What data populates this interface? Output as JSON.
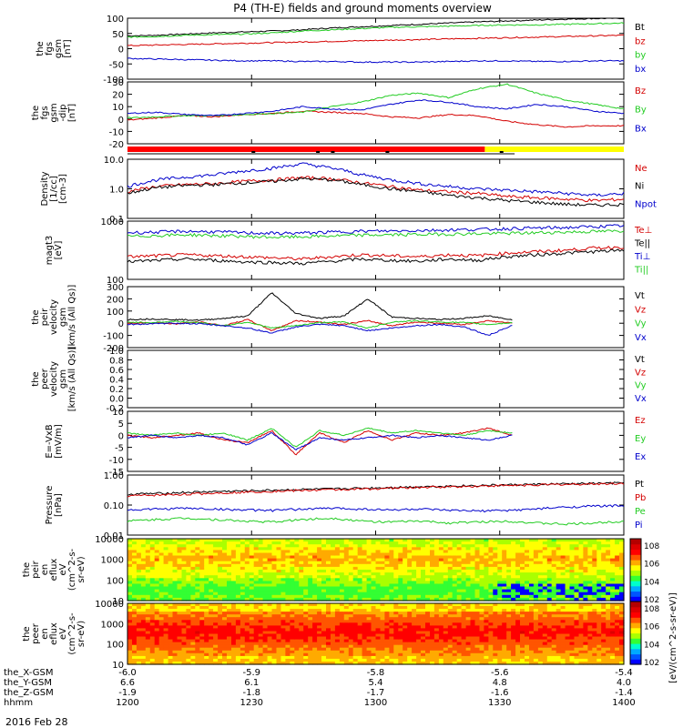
{
  "title": "P4 (TH-E) fields and ground moments overview",
  "footer_date": "2016 Feb 28",
  "colors": {
    "black": "#000000",
    "red": "#d40000",
    "green": "#22cc22",
    "blue": "#0000cc",
    "yellow": "#ffff00"
  },
  "chart_data": {
    "type": "line",
    "x_axis": {
      "rows": [
        {
          "label": "the_X-GSM",
          "ticks": [
            "-6.0",
            "-5.9",
            "-5.8",
            "-5.6",
            "-5.4"
          ]
        },
        {
          "label": "the_Y-GSM",
          "ticks": [
            "6.6",
            "6.1",
            "5.4",
            "4.8",
            "4.0"
          ]
        },
        {
          "label": "the_Z-GSM",
          "ticks": [
            "-1.9",
            "-1.8",
            "-1.7",
            "-1.6",
            "-1.4"
          ]
        },
        {
          "label": "hhmm",
          "ticks": [
            "1200",
            "1230",
            "1300",
            "1330",
            "1400"
          ]
        }
      ],
      "range_hhmm": [
        1200,
        1400
      ]
    },
    "panels": [
      {
        "id": "p1",
        "ylabel": [
          "the",
          "fgs",
          "gsm",
          "[nT]"
        ],
        "ylim": [
          -100,
          100
        ],
        "yticks": [
          "100",
          "50",
          "0",
          "-50",
          "-100"
        ],
        "series": [
          {
            "name": "Bt",
            "color": "black",
            "values": [
              42,
              44,
              48,
              52,
              55,
              58,
              62,
              68,
              72,
              76,
              80,
              84,
              88,
              91,
              94,
              97,
              99,
              100
            ]
          },
          {
            "name": "bz",
            "color": "red",
            "values": [
              10,
              12,
              14,
              16,
              18,
              20,
              22,
              24,
              26,
              28,
              30,
              32,
              34,
              36,
              38,
              40,
              42,
              44
            ]
          },
          {
            "name": "by",
            "color": "green",
            "values": [
              38,
              40,
              44,
              46,
              48,
              52,
              58,
              62,
              66,
              70,
              72,
              74,
              76,
              78,
              78,
              80,
              82,
              84
            ]
          },
          {
            "name": "bx",
            "color": "blue",
            "values": [
              -32,
              -34,
              -36,
              -38,
              -40,
              -40,
              -42,
              -42,
              -44,
              -44,
              -44,
              -42,
              -40,
              -40,
              -42,
              -42,
              -40,
              -40
            ]
          }
        ]
      },
      {
        "id": "p2",
        "ylabel": [
          "the",
          "fgs",
          "gsm",
          "-dip",
          "[nT]"
        ],
        "ylim": [
          -25,
          30
        ],
        "yticks": [
          "30",
          "20",
          "10",
          "0",
          "-10",
          "-20"
        ],
        "series": [
          {
            "name": "Bz",
            "color": "red",
            "values": [
              -4,
              -2,
              0,
              -1,
              1,
              2,
              4,
              3,
              2,
              -1,
              -2,
              1,
              0,
              -5,
              -8,
              -10,
              -9,
              -9
            ]
          },
          {
            "name": "By",
            "color": "green",
            "values": [
              -2,
              -1,
              0,
              0,
              1,
              2,
              3,
              8,
              12,
              18,
              20,
              16,
              24,
              28,
              20,
              14,
              10,
              6
            ]
          },
          {
            "name": "Bx",
            "color": "blue",
            "values": [
              2,
              3,
              1,
              0,
              2,
              4,
              8,
              6,
              5,
              10,
              14,
              12,
              8,
              6,
              10,
              8,
              4,
              2
            ]
          }
        ]
      },
      {
        "id": "p3",
        "ylabel": [
          "Density",
          "[1/cc]",
          "[cm-3]"
        ],
        "ylim": [
          0.1,
          10
        ],
        "yticks": [
          "10.0",
          "1.0",
          "0.1"
        ],
        "log": true,
        "series": [
          {
            "name": "Ne",
            "color": "red",
            "values": [
              0.8,
              1.2,
              1.4,
              1.5,
              1.8,
              2,
              2.4,
              2.2,
              1.6,
              1.2,
              0.9,
              0.8,
              0.7,
              0.55,
              0.5,
              0.45,
              0.4,
              0.45
            ]
          },
          {
            "name": "Ni",
            "color": "black",
            "values": [
              0.7,
              1.1,
              1.3,
              1.4,
              1.6,
              1.8,
              2.2,
              2,
              1.4,
              1,
              0.8,
              0.6,
              0.5,
              0.4,
              0.35,
              0.3,
              0.28,
              0.3
            ]
          },
          {
            "name": "Npot",
            "color": "blue",
            "values": [
              1.2,
              2,
              2.5,
              3,
              4,
              5,
              7,
              5,
              3,
              2,
              1.5,
              1.2,
              1,
              0.9,
              0.8,
              0.7,
              0.6,
              0.7
            ]
          }
        ]
      },
      {
        "id": "p4",
        "ylabel": [
          "magt3",
          "[eV]"
        ],
        "ylim": [
          100,
          10000
        ],
        "yticks": [
          "1000",
          "100"
        ],
        "log": true,
        "series": [
          {
            "name": "Te⊥",
            "color": "red",
            "values": [
              600,
              650,
              700,
              650,
              600,
              550,
              500,
              600,
              700,
              650,
              600,
              700,
              650,
              800,
              900,
              1000,
              1200,
              1300
            ]
          },
          {
            "name": "Te||",
            "color": "black",
            "values": [
              400,
              450,
              500,
              450,
              400,
              380,
              350,
              420,
              500,
              450,
              420,
              500,
              450,
              600,
              700,
              800,
              900,
              1000
            ]
          },
          {
            "name": "Ti⊥",
            "color": "blue",
            "values": [
              4000,
              4200,
              4500,
              4300,
              4000,
              3800,
              3900,
              4200,
              4500,
              4600,
              4800,
              5000,
              5200,
              5500,
              5800,
              6000,
              6500,
              7000
            ]
          },
          {
            "name": "Ti||",
            "color": "green",
            "values": [
              3000,
              3200,
              3400,
              3200,
              3000,
              2800,
              2900,
              3100,
              3300,
              3400,
              3500,
              3600,
              3700,
              3800,
              4000,
              4200,
              4400,
              4600
            ]
          }
        ]
      },
      {
        "id": "p5",
        "ylabel": [
          "the",
          "peir",
          "velocity",
          "gsm",
          "[km/s (All Qs)]"
        ],
        "ylim": [
          -200,
          300
        ],
        "yticks": [
          "300",
          "200",
          "100",
          "0",
          "-100",
          "-200"
        ],
        "series": [
          {
            "name": "Vt",
            "color": "black",
            "values": [
              30,
              35,
              30,
              25,
              40,
              60,
              250,
              80,
              40,
              60,
              200,
              50,
              40,
              30,
              40,
              60,
              30
            ]
          },
          {
            "name": "Vz",
            "color": "red",
            "values": [
              0,
              5,
              -5,
              10,
              -20,
              30,
              -60,
              20,
              10,
              -10,
              20,
              -20,
              10,
              0,
              -10,
              20,
              0
            ]
          },
          {
            "name": "Vy",
            "color": "green",
            "values": [
              10,
              5,
              15,
              5,
              -20,
              10,
              -40,
              -20,
              5,
              10,
              -40,
              10,
              20,
              10,
              5,
              -10,
              5
            ]
          },
          {
            "name": "Vx",
            "color": "blue",
            "values": [
              -10,
              -5,
              0,
              -5,
              -20,
              -40,
              -80,
              -30,
              -10,
              -20,
              -60,
              -40,
              -20,
              -10,
              -30,
              -100,
              -20
            ]
          }
        ]
      },
      {
        "id": "p6",
        "ylabel": [
          "the",
          "peer",
          "velocity",
          "gsm",
          "[km/s (All Qs)]"
        ],
        "ylim": [
          -0.2,
          1.0
        ],
        "yticks": [
          "1.0",
          "0.8",
          "0.6",
          "0.4",
          "0.2",
          "0.0",
          "-0.2"
        ],
        "series": [
          {
            "name": "Vt",
            "color": "black",
            "values": []
          },
          {
            "name": "Vz",
            "color": "red",
            "values": []
          },
          {
            "name": "Vy",
            "color": "green",
            "values": []
          },
          {
            "name": "Vx",
            "color": "blue",
            "values": []
          }
        ]
      },
      {
        "id": "p7",
        "ylabel": [
          "E=-VxB",
          "[mV/m]"
        ],
        "ylim": [
          -15,
          10
        ],
        "yticks": [
          "10",
          "5",
          "0",
          "-5",
          "-10",
          "-15"
        ],
        "series": [
          {
            "name": "Ez",
            "color": "red",
            "values": [
              0,
              -1,
              0,
              1,
              -2,
              -3,
              2,
              -8,
              1,
              -3,
              2,
              -2,
              1,
              0,
              1,
              3,
              0
            ]
          },
          {
            "name": "Ey",
            "color": "green",
            "values": [
              1,
              0,
              1,
              0,
              1,
              -2,
              3,
              -5,
              2,
              0,
              3,
              1,
              2,
              1,
              0,
              2,
              1
            ]
          },
          {
            "name": "Ex",
            "color": "blue",
            "values": [
              -1,
              0,
              -1,
              0,
              -1,
              -4,
              1,
              -6,
              -1,
              -2,
              -1,
              0,
              -1,
              0,
              -1,
              -2,
              0
            ]
          }
        ]
      },
      {
        "id": "p8",
        "ylabel": [
          "Pressure",
          "[nPa]"
        ],
        "ylim": [
          0.01,
          10
        ],
        "yticks": [
          "1.00",
          "0.10",
          "0.01"
        ],
        "log": true,
        "series": [
          {
            "name": "Pt",
            "color": "black",
            "values": [
              1.1,
              1.2,
              1.35,
              1.5,
              1.6,
              1.75,
              1.9,
              2,
              2.2,
              2.4,
              2.6,
              2.8,
              3,
              3.2,
              3.4,
              3.6,
              3.8,
              4
            ]
          },
          {
            "name": "Pb",
            "color": "red",
            "values": [
              0.9,
              1,
              1.1,
              1.25,
              1.4,
              1.55,
              1.7,
              1.85,
              2,
              2.2,
              2.4,
              2.6,
              2.8,
              3,
              3.2,
              3.4,
              3.6,
              3.8
            ]
          },
          {
            "name": "Pe",
            "color": "green",
            "values": [
              0.05,
              0.06,
              0.07,
              0.06,
              0.05,
              0.045,
              0.06,
              0.07,
              0.05,
              0.045,
              0.05,
              0.04,
              0.045,
              0.05,
              0.04,
              0.035,
              0.04,
              0.05
            ]
          },
          {
            "name": "Pi",
            "color": "blue",
            "values": [
              0.18,
              0.2,
              0.22,
              0.2,
              0.18,
              0.17,
              0.2,
              0.22,
              0.2,
              0.18,
              0.2,
              0.17,
              0.16,
              0.17,
              0.2,
              0.25,
              0.28,
              0.3
            ]
          }
        ]
      },
      {
        "id": "p9",
        "type": "heatmap",
        "ylabel": [
          "the",
          "peir",
          "en",
          "eflux",
          "eV",
          "(cm^2-s-",
          "sr-eV)"
        ],
        "yticks": [
          "10000",
          "1000",
          "100",
          "10"
        ],
        "log": true
      },
      {
        "id": "p10",
        "type": "heatmap",
        "ylabel": [
          "the",
          "peer",
          "en",
          "eflux",
          "eV",
          "(cm^2-s-",
          "sr-eV)"
        ],
        "yticks": [
          "10000",
          "1000",
          "100",
          "10"
        ],
        "log": true
      }
    ],
    "colorbar": {
      "label": "[eV/(cm^2-s-sr-eV)]",
      "ticks_upper": [
        "10^8",
        "10^6",
        "10^4",
        "10^2"
      ],
      "ticks_lower": [
        "10^8",
        "10^6",
        "10^4",
        "10^2"
      ]
    },
    "state_bar": {
      "red_fraction": 0.72,
      "yellow_fraction": 0.28
    }
  }
}
